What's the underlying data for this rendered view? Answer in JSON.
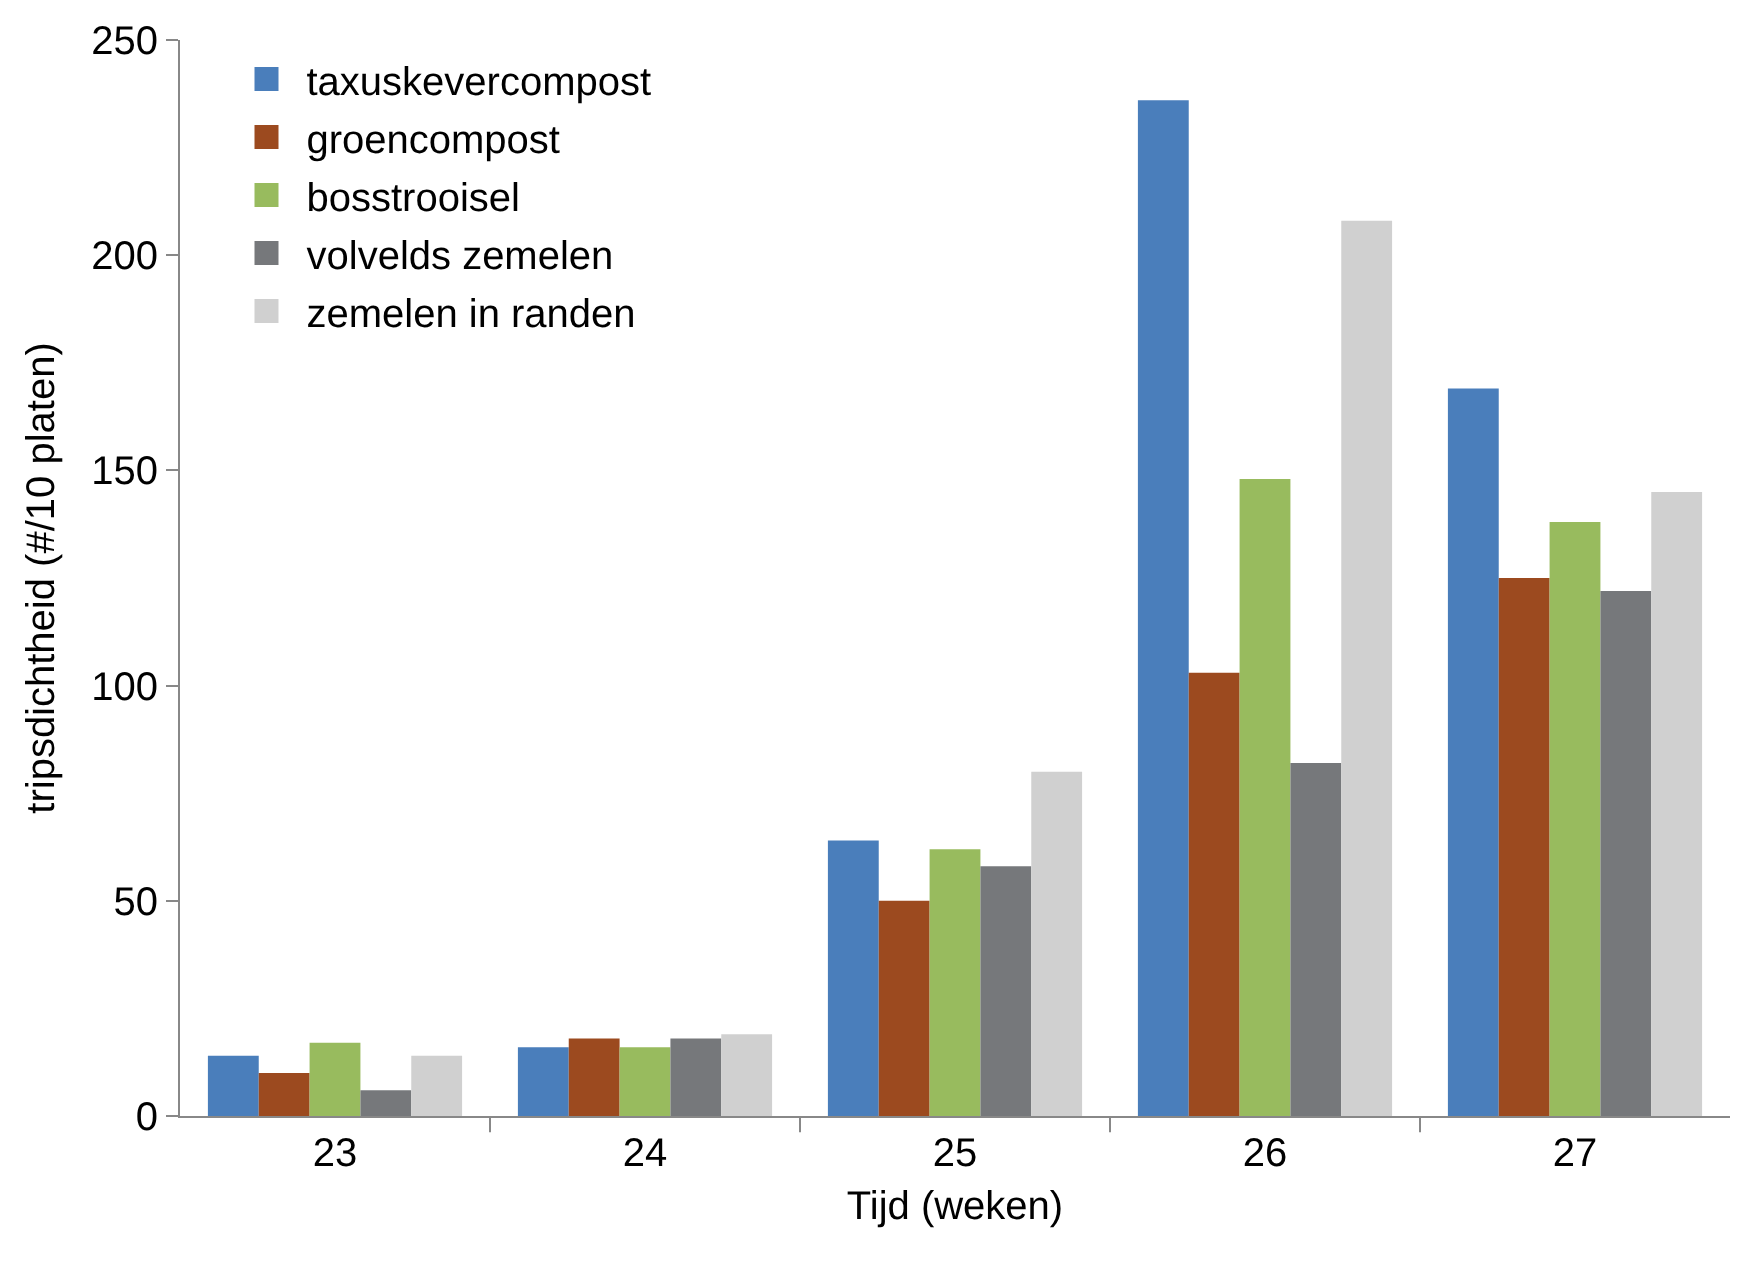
{
  "chart_data": {
    "type": "bar",
    "xlabel": "Tijd (weken)",
    "ylabel": "tripsdichtheid (#/10 platen)",
    "categories": [
      "23",
      "24",
      "25",
      "26",
      "27"
    ],
    "series": [
      {
        "name": "taxuskevercompost",
        "color": "#4a7ebb",
        "values": [
          14,
          16,
          64,
          236,
          169
        ]
      },
      {
        "name": "groencompost",
        "color": "#9c4a1f",
        "values": [
          10,
          18,
          50,
          103,
          125
        ]
      },
      {
        "name": "bosstrooisel",
        "color": "#98bb5e",
        "values": [
          17,
          16,
          62,
          148,
          138
        ]
      },
      {
        "name": "volvelds zemelen",
        "color": "#76787b",
        "values": [
          6,
          18,
          58,
          82,
          122
        ]
      },
      {
        "name": "zemelen in randen",
        "color": "#d0d0d0",
        "values": [
          14,
          19,
          80,
          208,
          145
        ]
      }
    ],
    "ylim": [
      0,
      250
    ],
    "yticks": [
      0,
      50,
      100,
      150,
      200,
      250
    ],
    "grid": false,
    "legend": "top left"
  }
}
